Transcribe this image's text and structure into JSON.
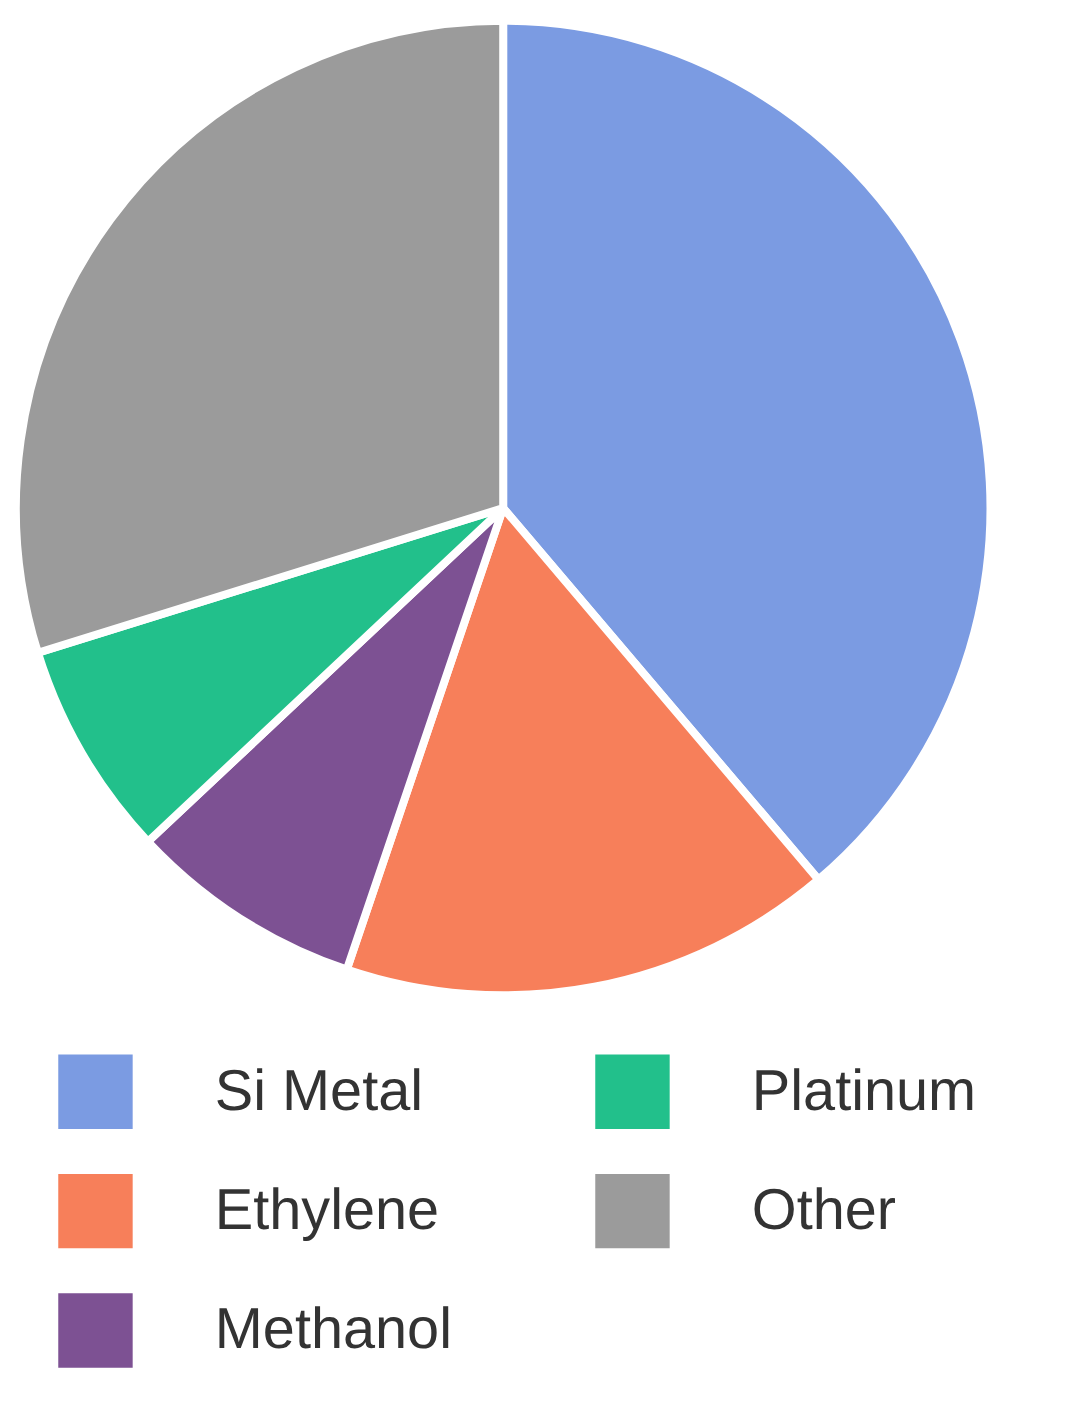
{
  "chart_data": {
    "type": "pie",
    "categories": [
      "Si Metal",
      "Ethylene",
      "Methanol",
      "Platinum",
      "Other"
    ],
    "values": [
      38.8,
      16.4,
      7.8,
      7.2,
      29.8
    ],
    "colors": [
      "#7b9be2",
      "#f77f5a",
      "#7d5193",
      "#22c08b",
      "#9b9b9b"
    ],
    "legend": "bottom"
  }
}
